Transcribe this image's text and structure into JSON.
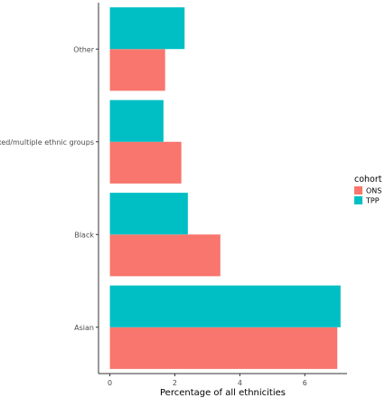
{
  "chart_data": {
    "type": "bar",
    "orientation": "horizontal",
    "categories": [
      "Asian",
      "Black",
      "Mixed/multiple ethnic groups",
      "Other"
    ],
    "series": [
      {
        "name": "ONS",
        "values": [
          7.0,
          3.4,
          2.2,
          1.7
        ],
        "color": "#F8766D"
      },
      {
        "name": "TPP",
        "values": [
          7.1,
          2.4,
          1.65,
          2.3
        ],
        "color": "#00BFC4"
      }
    ],
    "xlabel": "Percentage of all ethnicities",
    "ylabel": "",
    "xlim": [
      -0.35,
      7.3
    ],
    "xticks": [
      0,
      2,
      4,
      6
    ],
    "legend": {
      "title": "cohort",
      "position": "right"
    },
    "grid": false
  }
}
